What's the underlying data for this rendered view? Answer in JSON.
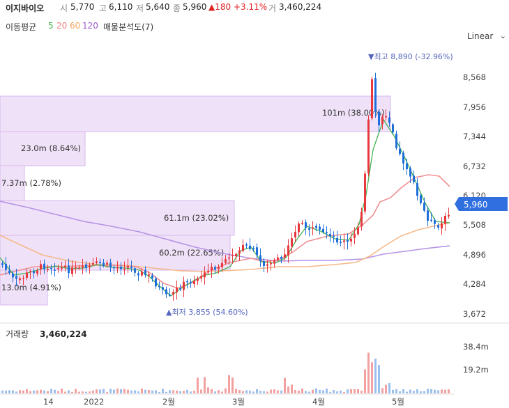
{
  "header": {
    "name": "이지바이오",
    "open_label": "시",
    "open_value": "5,770",
    "high_label": "고",
    "high_value": "6,110",
    "low_label": "저",
    "low_value": "5,640",
    "close_label": "종",
    "close_value": "5,960",
    "change": "▲180 +3.11%",
    "volume_label": "거",
    "volume_value": "3,460,224"
  },
  "ma_legend": {
    "title": "이동평균",
    "items": [
      {
        "label": "5",
        "color": "#3cb34a"
      },
      {
        "label": "20",
        "color": "#f08080"
      },
      {
        "label": "60",
        "color": "#f4a460"
      },
      {
        "label": "120",
        "color": "#9b59d0"
      }
    ],
    "volume_profile": "매물분석도(7)"
  },
  "scale_select": {
    "value": "Linear"
  },
  "price_axis": {
    "ticks": [
      "8,568",
      "7,956",
      "7,344",
      "6,732",
      "6,120",
      "5,508",
      "4,896",
      "4,284",
      "3,672"
    ],
    "current": "5,960"
  },
  "volume_axis": {
    "title": "거래량",
    "value": "3,460,224",
    "ticks": [
      "38.4m",
      "19.2m"
    ]
  },
  "x_axis": {
    "ticks": [
      "14",
      "2022",
      "2월",
      "3월",
      "4월",
      "5월"
    ]
  },
  "annotations": {
    "max": "▼최고 8,890 (-32.96%)",
    "min": "▲최저 3,855 (54.60%)"
  },
  "volume_profile_bars": [
    {
      "label": "101m (38.00%)"
    },
    {
      "label": "23.0m (8.64%)"
    },
    {
      "label": "7.37m (2.78%)"
    },
    {
      "label": "61.1m (23.02%)"
    },
    {
      "label": "60.2m (22.65%)"
    },
    {
      "label": "13.0m (4.91%)"
    }
  ],
  "colors": {
    "up": "#e8383d",
    "down": "#1e6fd9",
    "ma5": "#3cb34a",
    "ma20": "#f08080",
    "ma60": "#f4a460",
    "ma120": "#9b59d0",
    "profile": "#ecdcf6"
  }
}
